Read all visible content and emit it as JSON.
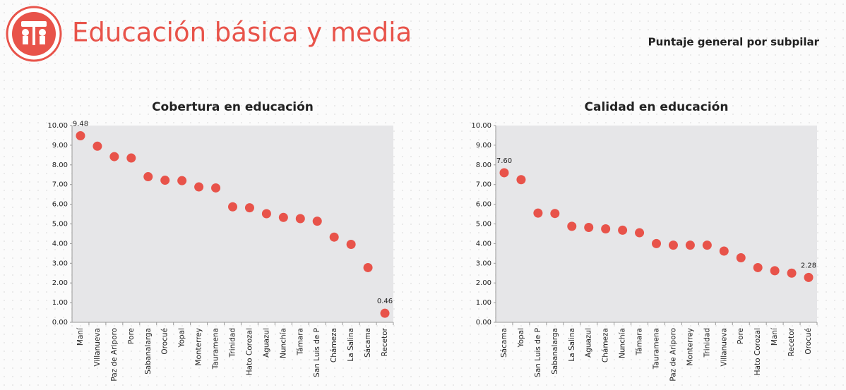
{
  "header": {
    "title": "Educación básica y media",
    "subtitle": "Puntaje general por subpilar"
  },
  "chart_data": [
    {
      "type": "dot",
      "title": "Cobertura en educación",
      "color": "#e8534a",
      "grid": false,
      "categories": [
        "Maní",
        "Villanueva",
        "Paz de Ariporo",
        "Pore",
        "Sabanalarga",
        "Orocué",
        "Yopal",
        "Monterrey",
        "Tauramena",
        "Trinidad",
        "Hato Corozal",
        "Aguazul",
        "Nunchía",
        "Támara",
        "San Luis de P",
        "Chámeza",
        "La Salina",
        "Sácama",
        "Recetor"
      ],
      "values": [
        9.48,
        8.95,
        8.42,
        8.35,
        7.4,
        7.22,
        7.2,
        6.88,
        6.83,
        5.87,
        5.82,
        5.52,
        5.33,
        5.27,
        5.14,
        4.33,
        3.96,
        2.78,
        0.46
      ],
      "value_labels": [
        "9.48",
        null,
        null,
        null,
        null,
        null,
        null,
        null,
        null,
        null,
        null,
        null,
        null,
        null,
        null,
        null,
        null,
        null,
        "0.46"
      ],
      "ylim": [
        0,
        10
      ],
      "yticks": [
        {
          "value": 0,
          "label": "0.00"
        },
        {
          "value": 1,
          "label": "1.00"
        },
        {
          "value": 2,
          "label": "2.00"
        },
        {
          "value": 3,
          "label": "3.00"
        },
        {
          "value": 4,
          "label": "4.00"
        },
        {
          "value": 5,
          "label": "5.00"
        },
        {
          "value": 6,
          "label": "6.00"
        },
        {
          "value": 7,
          "label": "7.00"
        },
        {
          "value": 8,
          "label": "8.00"
        },
        {
          "value": 9,
          "label": "9.00"
        },
        {
          "value": 10,
          "label": "10.00"
        }
      ]
    },
    {
      "type": "dot",
      "title": "Calidad en educación",
      "color": "#e8534a",
      "grid": false,
      "categories": [
        "Sácama",
        "Yopal",
        "San Luis de P",
        "Sabanalarga",
        "La Salina",
        "Aguazul",
        "Chámeza",
        "Nunchía",
        "Támara",
        "Tauramena",
        "Paz de Ariporo",
        "Monterrey",
        "Trinidad",
        "Villanueva",
        "Pore",
        "Hato Corozal",
        "Maní",
        "Recetor",
        "Orocué"
      ],
      "values": [
        7.6,
        7.25,
        5.55,
        5.53,
        4.88,
        4.82,
        4.75,
        4.68,
        4.55,
        4.0,
        3.92,
        3.92,
        3.92,
        3.62,
        3.28,
        2.78,
        2.62,
        2.5,
        2.28
      ],
      "value_labels": [
        "7.60",
        null,
        null,
        null,
        null,
        null,
        null,
        null,
        null,
        null,
        null,
        null,
        null,
        null,
        null,
        null,
        null,
        null,
        "2.28"
      ],
      "ylim": [
        0,
        10
      ],
      "yticks": [
        {
          "value": 0,
          "label": "0.00"
        },
        {
          "value": 1,
          "label": "1.00"
        },
        {
          "value": 2,
          "label": "2.00"
        },
        {
          "value": 3,
          "label": "3.00"
        },
        {
          "value": 4,
          "label": "4.00"
        },
        {
          "value": 5,
          "label": "5.00"
        },
        {
          "value": 6,
          "label": "6.00"
        },
        {
          "value": 7,
          "label": "7.00"
        },
        {
          "value": 8,
          "label": "8.00"
        },
        {
          "value": 9,
          "label": "9.00"
        },
        {
          "value": 10,
          "label": "10.00"
        }
      ]
    }
  ]
}
